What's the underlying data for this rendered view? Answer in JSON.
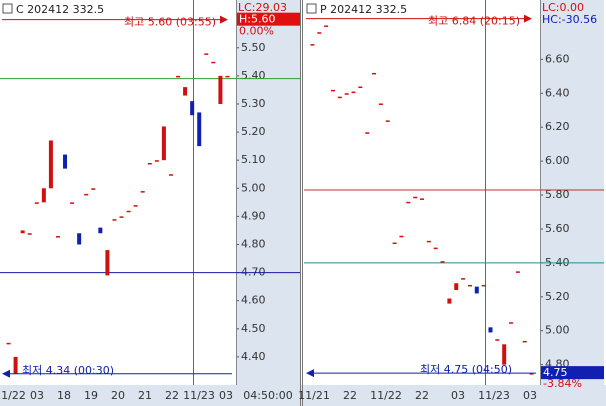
{
  "chart_data": [
    {
      "type": "candlestick",
      "title": "C 202412 332.5",
      "last_change": "LC:29.03",
      "high_box": {
        "label": "H:5.60",
        "value": 5.6
      },
      "percent": "0.00%",
      "ylim": [
        4.3,
        5.67
      ],
      "yticks": [
        {
          "value": 5.5,
          "label": "5.50"
        },
        {
          "value": 5.4,
          "label": "5.40"
        },
        {
          "value": 5.3,
          "label": "5.30"
        },
        {
          "value": 5.2,
          "label": "5.20"
        },
        {
          "value": 5.1,
          "label": "5.10"
        },
        {
          "value": 5.0,
          "label": "5.00"
        },
        {
          "value": 4.9,
          "label": "4.90"
        },
        {
          "value": 4.8,
          "label": "4.80"
        },
        {
          "value": 4.7,
          "label": "4.70"
        },
        {
          "value": 4.6,
          "label": "4.60"
        },
        {
          "value": 4.5,
          "label": "4.50"
        },
        {
          "value": 4.4,
          "label": "4.40"
        }
      ],
      "xlabels": [
        "11/22",
        "03",
        "18",
        "19",
        "20",
        "21",
        "22",
        "11/23",
        "03"
      ],
      "time": "04:50:00",
      "max": {
        "label": "최고 5.60 (03:55)",
        "value": 5.6
      },
      "min": {
        "label": "최저 4.34 (00:30)",
        "value": 4.34
      },
      "hlines": [
        {
          "value": 5.39,
          "color": "#2e9e2e"
        },
        {
          "value": 4.7,
          "color": "#1a1aa0"
        }
      ],
      "open": [
        4.45,
        4.34,
        4.84,
        4.84,
        4.95,
        4.95,
        5.0,
        4.83,
        5.12,
        4.95,
        4.84,
        4.98,
        5.0,
        4.86,
        4.69,
        4.89,
        4.9,
        4.92,
        4.94,
        4.99,
        5.09,
        5.1,
        5.1,
        5.05,
        5.4,
        5.33,
        5.31,
        5.27,
        5.48,
        5.45,
        5.3,
        5.4
      ],
      "close": [
        4.45,
        4.4,
        4.85,
        4.84,
        4.95,
        5.0,
        5.17,
        4.83,
        5.07,
        4.95,
        4.8,
        4.98,
        5.0,
        4.84,
        4.78,
        4.89,
        4.9,
        4.92,
        4.94,
        4.99,
        5.09,
        5.1,
        5.22,
        5.05,
        5.4,
        5.36,
        5.26,
        5.15,
        5.48,
        5.45,
        5.4,
        5.4
      ]
    },
    {
      "type": "candlestick",
      "title": "P 202412 332.5",
      "last_change": "LC:0.00",
      "hc": "HC:-30.56",
      "low_box": {
        "label": "4.75",
        "value": 4.75
      },
      "percent": "-3.84%",
      "ylim": [
        4.68,
        6.95
      ],
      "yticks": [
        {
          "value": 6.6,
          "label": "6.60"
        },
        {
          "value": 6.4,
          "label": "6.40"
        },
        {
          "value": 6.2,
          "label": "6.20"
        },
        {
          "value": 6.0,
          "label": "6.00"
        },
        {
          "value": 5.8,
          "label": "5.80"
        },
        {
          "value": 5.6,
          "label": "5.60"
        },
        {
          "value": 5.4,
          "label": "5.40"
        },
        {
          "value": 5.2,
          "label": "5.20"
        },
        {
          "value": 5.0,
          "label": "5.00"
        },
        {
          "value": 4.8,
          "label": "4.80"
        }
      ],
      "xlabels": [
        "11/21",
        "22",
        "11/22",
        "22",
        "03",
        "11/23",
        "03"
      ],
      "max": {
        "label": "최고 6.84 (20:15)",
        "value": 6.84
      },
      "min": {
        "label": "최저 4.75 (04:50)",
        "value": 4.75
      },
      "hlines": [
        {
          "value": 5.83,
          "color": "#c03030"
        },
        {
          "value": 5.4,
          "color": "#2a8a8a"
        }
      ],
      "open": [
        6.69,
        6.76,
        6.8,
        6.42,
        6.38,
        6.4,
        6.41,
        6.44,
        6.17,
        6.52,
        6.34,
        6.24,
        5.52,
        5.56,
        5.76,
        5.79,
        5.78,
        5.53,
        5.49,
        5.41,
        5.16,
        5.24,
        5.31,
        5.27,
        5.26,
        5.27,
        5.02,
        4.95,
        4.8,
        5.05,
        5.35,
        4.94,
        4.75
      ],
      "close": [
        6.69,
        6.76,
        6.8,
        6.42,
        6.38,
        6.4,
        6.41,
        6.44,
        6.17,
        6.52,
        6.34,
        6.24,
        5.52,
        5.56,
        5.76,
        5.79,
        5.78,
        5.53,
        5.49,
        5.41,
        5.19,
        5.28,
        5.31,
        5.27,
        5.22,
        5.27,
        4.99,
        4.95,
        4.92,
        5.05,
        5.35,
        4.94,
        4.75
      ]
    }
  ]
}
